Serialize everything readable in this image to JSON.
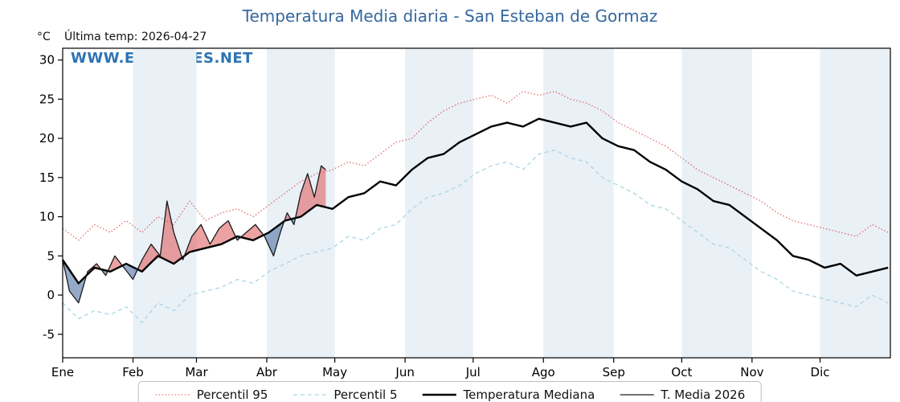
{
  "header": {
    "unit_label": "°C",
    "last_temp_label": "Última temp: 2026-04-27",
    "watermark": "WWW.EMBALSES.NET"
  },
  "chart_data": {
    "type": "line",
    "title": "Temperatura Media diaria - San Esteban de Gormaz",
    "x_unit": "day_of_year",
    "ylim": [
      -8,
      31.5
    ],
    "yticks": [
      -5,
      0,
      5,
      10,
      15,
      20,
      25,
      30
    ],
    "grid": false,
    "legend_position": "bottom",
    "months": [
      {
        "label": "Ene",
        "start_day": 1
      },
      {
        "label": "Feb",
        "start_day": 32
      },
      {
        "label": "Mar",
        "start_day": 60
      },
      {
        "label": "Abr",
        "start_day": 91
      },
      {
        "label": "May",
        "start_day": 121
      },
      {
        "label": "Jun",
        "start_day": 152
      },
      {
        "label": "Jul",
        "start_day": 182
      },
      {
        "label": "Ago",
        "start_day": 213
      },
      {
        "label": "Sep",
        "start_day": 244
      },
      {
        "label": "Oct",
        "start_day": 274
      },
      {
        "label": "Nov",
        "start_day": 305
      },
      {
        "label": "Dic",
        "start_day": 335
      }
    ],
    "shaded_months": [
      "Feb",
      "Abr",
      "Jun",
      "Ago",
      "Oct",
      "Dic"
    ],
    "colors": {
      "band": "#e9f0f6",
      "title_blue": "#36689e",
      "watermark_blue": "#2e73b4"
    },
    "fills": {
      "between": [
        "T. Media 2026",
        "Temperatura Mediana"
      ],
      "above_color": "rgba(222,85,85,0.55)",
      "below_color": "rgba(90,125,170,0.65)"
    },
    "series": [
      {
        "name": "Percentil 95",
        "color": "#dd5555",
        "style": "dotted",
        "x": [
          1,
          8,
          15,
          22,
          29,
          36,
          43,
          50,
          57,
          64,
          71,
          78,
          85,
          92,
          99,
          106,
          113,
          120,
          127,
          134,
          141,
          148,
          155,
          162,
          169,
          176,
          183,
          190,
          197,
          204,
          211,
          218,
          225,
          232,
          239,
          246,
          253,
          260,
          267,
          274,
          281,
          288,
          295,
          302,
          309,
          316,
          323,
          330,
          337,
          344,
          351,
          358,
          365
        ],
        "values": [
          8.5,
          7,
          9,
          8,
          9.5,
          8,
          10,
          9,
          12,
          9.5,
          10.5,
          11,
          10,
          11.5,
          13,
          14.5,
          15.5,
          16,
          17,
          16.5,
          18,
          19.5,
          20,
          22,
          23.5,
          24.5,
          25,
          25.5,
          24.5,
          26,
          25.5,
          26,
          25,
          24.5,
          23.5,
          22,
          21,
          20,
          19,
          17.5,
          16,
          15,
          14,
          13,
          12,
          10.5,
          9.5,
          9,
          8.5,
          8,
          7.5,
          9,
          8
        ]
      },
      {
        "name": "Percentil 5",
        "color": "#a9d6e5",
        "style": "dashed",
        "x": [
          1,
          8,
          15,
          22,
          29,
          36,
          43,
          50,
          57,
          64,
          71,
          78,
          85,
          92,
          99,
          106,
          113,
          120,
          127,
          134,
          141,
          148,
          155,
          162,
          169,
          176,
          183,
          190,
          197,
          204,
          211,
          218,
          225,
          232,
          239,
          246,
          253,
          260,
          267,
          274,
          281,
          288,
          295,
          302,
          309,
          316,
          323,
          330,
          337,
          344,
          351,
          358,
          365
        ],
        "values": [
          -1,
          -3,
          -2,
          -2.5,
          -1.5,
          -3.5,
          -1,
          -2,
          0,
          0.5,
          1,
          2,
          1.5,
          3,
          4,
          5,
          5.5,
          6,
          7.5,
          7,
          8.5,
          9,
          11,
          12.5,
          13,
          14,
          15.5,
          16.5,
          17,
          16,
          18,
          18.5,
          17.5,
          17,
          15,
          14,
          13,
          11.5,
          11,
          9.5,
          8,
          6.5,
          6,
          4.5,
          3,
          2,
          0.5,
          0,
          -0.5,
          -1,
          -1.5,
          0,
          -1
        ]
      },
      {
        "name": "Temperatura Mediana",
        "color": "#000000",
        "style": "solid-thick",
        "x": [
          1,
          8,
          15,
          22,
          29,
          36,
          43,
          50,
          57,
          64,
          71,
          78,
          85,
          92,
          99,
          106,
          113,
          120,
          127,
          134,
          141,
          148,
          155,
          162,
          169,
          176,
          183,
          190,
          197,
          204,
          211,
          218,
          225,
          232,
          239,
          246,
          253,
          260,
          267,
          274,
          281,
          288,
          295,
          302,
          309,
          316,
          323,
          330,
          337,
          344,
          351,
          358,
          365
        ],
        "values": [
          4.5,
          1.5,
          3.5,
          3,
          4,
          3,
          5,
          4,
          5.5,
          6,
          6.5,
          7.5,
          7,
          8,
          9.5,
          10,
          11.5,
          11,
          12.5,
          13,
          14.5,
          14,
          16,
          17.5,
          18,
          19.5,
          20.5,
          21.5,
          22,
          21.5,
          22.5,
          22,
          21.5,
          22,
          20,
          19,
          18.5,
          17,
          16,
          14.5,
          13.5,
          12,
          11.5,
          10,
          8.5,
          7,
          5,
          4.5,
          3.5,
          4,
          2.5,
          3,
          3.5
        ]
      },
      {
        "name": "T. Media 2026",
        "color": "#1a1a1a",
        "style": "solid-thin",
        "x": [
          1,
          4,
          8,
          12,
          16,
          20,
          24,
          28,
          32,
          36,
          40,
          44,
          47,
          50,
          54,
          58,
          62,
          66,
          70,
          74,
          78,
          82,
          86,
          90,
          94,
          97,
          100,
          103,
          106,
          109,
          112,
          115,
          117
        ],
        "values": [
          4.5,
          0.5,
          -1,
          3,
          4,
          2.5,
          5,
          3.5,
          2,
          4.5,
          6.5,
          5,
          12,
          8,
          4.5,
          7.5,
          9,
          6.5,
          8.5,
          9.5,
          7,
          8,
          9,
          7.5,
          5,
          8,
          10.5,
          9,
          13,
          15.5,
          12.5,
          16.5,
          16
        ]
      }
    ]
  }
}
